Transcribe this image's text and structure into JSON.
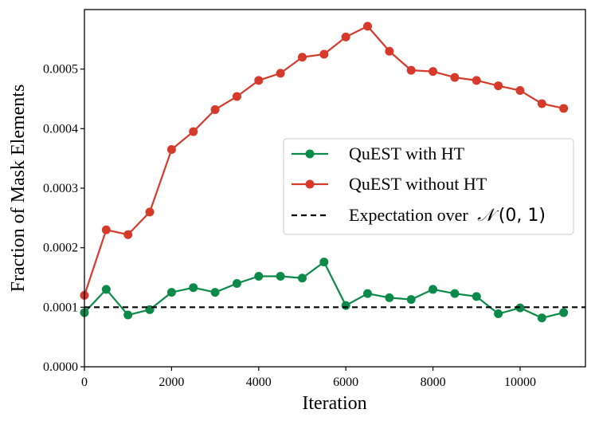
{
  "chart_data": {
    "type": "line",
    "title": "",
    "xlabel": "Iteration",
    "ylabel": "Fraction of Mask Elements",
    "xlim": [
      0,
      11500
    ],
    "ylim": [
      0,
      0.0006
    ],
    "xticks": [
      0,
      2000,
      4000,
      6000,
      8000,
      10000
    ],
    "xtick_labels": [
      "0",
      "2000",
      "4000",
      "6000",
      "8000",
      "10000"
    ],
    "yticks": [
      0,
      0.0001,
      0.0002,
      0.0003,
      0.0004,
      0.0005
    ],
    "ytick_labels": [
      "0.0000",
      "0.0001",
      "0.0002",
      "0.0003",
      "0.0004",
      "0.0005"
    ],
    "grid": false,
    "legend_position": "center-right",
    "x": [
      0,
      500,
      1000,
      1500,
      2000,
      2500,
      3000,
      3500,
      4000,
      4500,
      5000,
      5500,
      6000,
      6500,
      7000,
      7500,
      8000,
      8500,
      9000,
      9500,
      10000,
      10500,
      11000
    ],
    "series": [
      {
        "name": "QuEST with HT",
        "color": "#0b8a4a",
        "marker": "circle",
        "values": [
          9.1e-05,
          0.00013,
          8.7e-05,
          9.6e-05,
          0.000125,
          0.000133,
          0.000125,
          0.00014,
          0.000152,
          0.000152,
          0.000149,
          0.000176,
          0.000103,
          0.000123,
          0.000116,
          0.000113,
          0.00013,
          0.000123,
          0.000118,
          8.9e-05,
          9.9e-05,
          8.2e-05,
          9.1e-05
        ]
      },
      {
        "name": "QuEST without HT",
        "color": "#d63a2b",
        "marker": "circle",
        "values": [
          0.00012,
          0.00023,
          0.000222,
          0.00026,
          0.000365,
          0.000395,
          0.000432,
          0.000454,
          0.000481,
          0.000493,
          0.00052,
          0.000525,
          0.000554,
          0.000572,
          0.00053,
          0.000498,
          0.000496,
          0.000486,
          0.000481,
          0.000472,
          0.000464,
          0.000442,
          0.000434
        ]
      }
    ],
    "reference_line": {
      "name": "Expectation over",
      "math_symbol": "𝒩",
      "math_args": "(0, 1)",
      "value": 0.0001,
      "color": "#000000",
      "style": "dashed"
    }
  }
}
